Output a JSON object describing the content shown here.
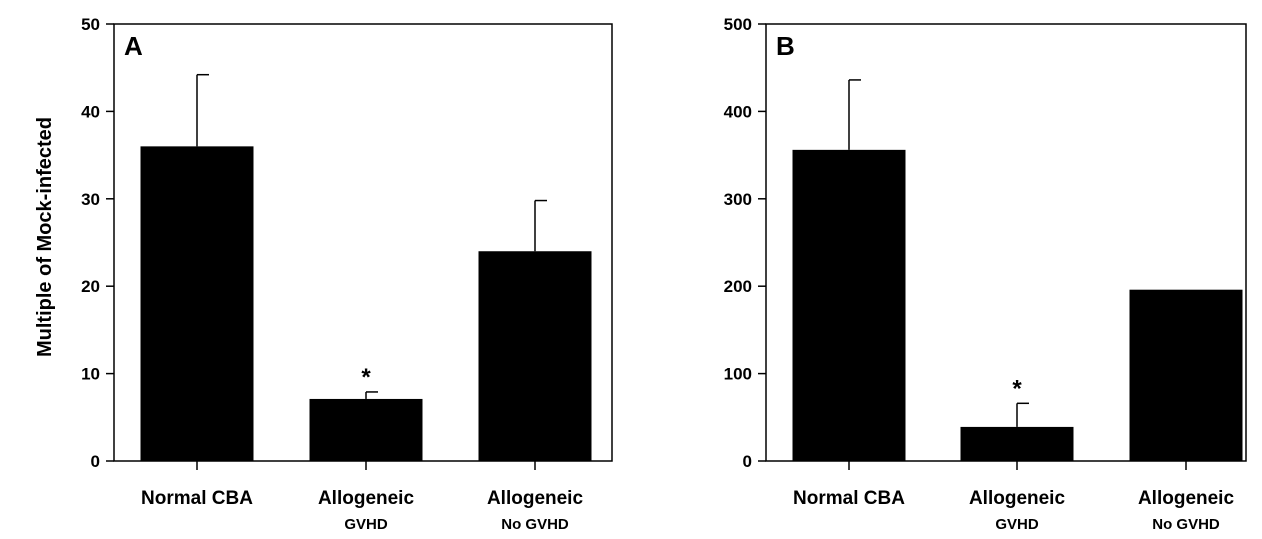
{
  "ylabel": "Multiple of Mock-infected",
  "chart_data": [
    {
      "type": "bar",
      "panel_label": "A",
      "ylabel": "Multiple of Mock-infected",
      "ylim": [
        0,
        50
      ],
      "yticks": [
        0,
        10,
        20,
        30,
        40,
        50
      ],
      "categories": [
        {
          "label": "Normal CBA",
          "sub": ""
        },
        {
          "label": "Allogeneic",
          "sub": "GVHD"
        },
        {
          "label": "Allogeneic",
          "sub": "No GVHD"
        }
      ],
      "values": [
        36,
        7.1,
        24
      ],
      "errors": [
        8.2,
        0.8,
        5.8
      ],
      "annotations": [
        "",
        "*",
        ""
      ],
      "color": "#000000"
    },
    {
      "type": "bar",
      "panel_label": "B",
      "ylabel": "",
      "ylim": [
        0,
        500
      ],
      "yticks": [
        0,
        100,
        200,
        300,
        400,
        500
      ],
      "categories": [
        {
          "label": "Normal CBA",
          "sub": ""
        },
        {
          "label": "Allogeneic",
          "sub": "GVHD"
        },
        {
          "label": "Allogeneic",
          "sub": "No GVHD"
        }
      ],
      "values": [
        356,
        39,
        196
      ],
      "errors": [
        80,
        27,
        0
      ],
      "annotations": [
        "",
        "*",
        ""
      ],
      "color": "#000000"
    }
  ]
}
